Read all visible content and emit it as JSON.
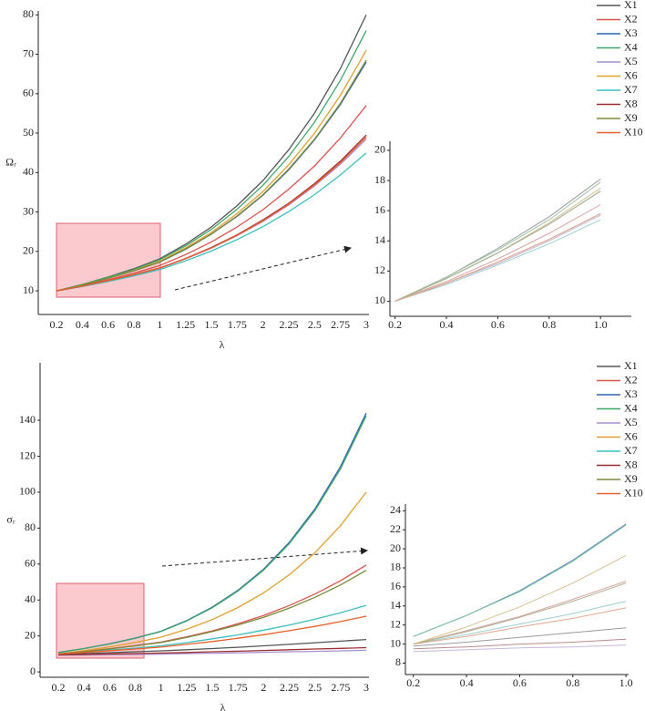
{
  "chart_data": [
    {
      "type": "line",
      "xlabel": "λ",
      "ylabel": "Ωᵣ",
      "categories": [
        "0.2",
        "0.4",
        "0.6",
        "0.8",
        "1",
        "1.25",
        "1.5",
        "1.75",
        "2",
        "2.25",
        "2.5",
        "2.75",
        "3"
      ],
      "ylim": [
        4,
        81
      ],
      "yticks": [
        10,
        20,
        30,
        40,
        50,
        60,
        70,
        80
      ],
      "series": [
        {
          "name": "X1",
          "color": "#555555",
          "values": [
            10,
            11.6,
            13.5,
            15.6,
            18.1,
            21.8,
            26.2,
            31.6,
            38,
            45.8,
            55.1,
            66.4,
            80
          ]
        },
        {
          "name": "X2",
          "color": "#d9534f",
          "values": [
            10,
            11.3,
            12.8,
            14.5,
            16.4,
            19.2,
            22.4,
            26.2,
            30.6,
            35.8,
            41.7,
            48.8,
            57
          ]
        },
        {
          "name": "X3",
          "color": "#2f64b0",
          "values": [
            10,
            11.5,
            13.2,
            15.1,
            17.3,
            20.5,
            24.4,
            28.9,
            34.3,
            40.7,
            48.3,
            57.3,
            68
          ]
        },
        {
          "name": "X4",
          "color": "#3fa66a",
          "values": [
            10,
            11.6,
            13.4,
            15.4,
            17.9,
            21.4,
            25.6,
            30.7,
            36.8,
            44.1,
            52.8,
            63.4,
            76
          ]
        },
        {
          "name": "X5",
          "color": "#a98fd0",
          "values": [
            10,
            11.2,
            12.5,
            14,
            15.7,
            18.1,
            20.8,
            24,
            27.6,
            31.8,
            36.6,
            42.1,
            48.5
          ]
        },
        {
          "name": "X6",
          "color": "#e0a030",
          "values": [
            10,
            11.5,
            13.2,
            15.2,
            17.5,
            20.9,
            24.8,
            29.6,
            35.2,
            42,
            50,
            59.6,
            71
          ]
        },
        {
          "name": "X7",
          "color": "#3dbdbd",
          "values": [
            10,
            11.1,
            12.4,
            13.8,
            15.4,
            17.6,
            20.1,
            23,
            26.3,
            30.1,
            34.4,
            39.4,
            45
          ]
        },
        {
          "name": "X8",
          "color": "#9c2f2f",
          "values": [
            10,
            11.2,
            12.6,
            14.1,
            15.8,
            18.2,
            21,
            24.2,
            28,
            32.2,
            37.2,
            42.9,
            49.5
          ]
        },
        {
          "name": "X9",
          "color": "#7a8a3a",
          "values": [
            10,
            11.5,
            13.2,
            15.1,
            17.3,
            20.6,
            24.4,
            29,
            34.4,
            40.9,
            48.5,
            57.6,
            68.5
          ]
        },
        {
          "name": "X10",
          "color": "#e8602c",
          "values": [
            10,
            11.2,
            12.6,
            14.1,
            15.8,
            18.2,
            20.9,
            24.1,
            27.8,
            32,
            36.9,
            42.5,
            49
          ]
        }
      ]
    },
    {
      "type": "line",
      "x": [
        0.2,
        0.4,
        0.6,
        0.8,
        1.0
      ],
      "xlim": [
        0.18,
        1.12
      ],
      "ylim": [
        9,
        20.6
      ],
      "xticks": [
        0.2,
        0.4,
        0.6,
        0.8,
        {
          "value": 1,
          "label": "1.0"
        }
      ],
      "yticks": [
        10,
        12,
        14,
        16,
        18,
        20
      ],
      "series": [
        {
          "color": "#9a9a9a",
          "values": [
            10,
            11.6,
            13.5,
            15.6,
            18.1
          ]
        },
        {
          "color": "#d9a0a0",
          "values": [
            10,
            11.3,
            12.8,
            14.5,
            16.4
          ]
        },
        {
          "color": "#8fa6c8",
          "values": [
            10,
            11.5,
            13.2,
            15.1,
            17.3
          ]
        },
        {
          "color": "#9cc4a8",
          "values": [
            10,
            11.6,
            13.4,
            15.4,
            17.9
          ]
        },
        {
          "color": "#c6b8dd",
          "values": [
            10,
            11.2,
            12.5,
            14,
            15.7
          ]
        },
        {
          "color": "#d8c08e",
          "values": [
            10,
            11.5,
            13.2,
            15.2,
            17.5
          ]
        },
        {
          "color": "#9ccfcf",
          "values": [
            10,
            11.1,
            12.4,
            13.8,
            15.4
          ]
        },
        {
          "color": "#b88c8c",
          "values": [
            10,
            11.2,
            12.6,
            14.1,
            15.8
          ]
        },
        {
          "color": "#a8b08a",
          "values": [
            10,
            11.5,
            13.2,
            15.1,
            17.3
          ]
        },
        {
          "color": "#e2a88c",
          "values": [
            10,
            11.2,
            12.6,
            14.1,
            15.8
          ]
        }
      ]
    },
    {
      "type": "line",
      "xlabel": "λ",
      "ylabel": "σᵣ",
      "categories": [
        "0.2",
        "0.4",
        "0.6",
        "0.8",
        "1",
        "1.25",
        "1.5",
        "1.75",
        "2",
        "2.25",
        "2.5",
        "2.75",
        "3"
      ],
      "ylim": [
        -3,
        172
      ],
      "yticks": [
        0,
        20,
        40,
        60,
        80,
        100,
        120,
        140
      ],
      "series": [
        {
          "name": "X1",
          "color": "#555555",
          "values": [
            9.8,
            10.2,
            10.7,
            11.2,
            11.7,
            12.3,
            13,
            13.7,
            14.5,
            15.3,
            16.2,
            17.1,
            18
          ]
        },
        {
          "name": "X2",
          "color": "#d9534f",
          "values": [
            10,
            11.4,
            12.9,
            14.7,
            16.6,
            19.5,
            22.8,
            26.8,
            31.4,
            36.9,
            43.3,
            50.7,
            59.5
          ]
        },
        {
          "name": "X3",
          "color": "#2f64b0",
          "values": [
            10.8,
            13,
            15.6,
            18.8,
            22.6,
            28.5,
            36,
            45.4,
            57.1,
            72,
            90.7,
            114.3,
            144
          ]
        },
        {
          "name": "X4",
          "color": "#3fa66a",
          "values": [
            10.8,
            13,
            15.5,
            18.7,
            22.5,
            28.3,
            35.7,
            45,
            56.6,
            71.3,
            89.8,
            113,
            142.5
          ]
        },
        {
          "name": "X5",
          "color": "#a98fd0",
          "values": [
            9.2,
            9.4,
            9.6,
            9.7,
            9.9,
            10.2,
            10.4,
            10.6,
            10.9,
            11.2,
            11.4,
            11.7,
            12
          ]
        },
        {
          "name": "X6",
          "color": "#e0a030",
          "values": [
            10,
            11.8,
            13.9,
            16.4,
            19.3,
            23.7,
            29.1,
            35.8,
            43.9,
            54,
            66.3,
            81.4,
            100
          ]
        },
        {
          "name": "X7",
          "color": "#3dbdbd",
          "values": [
            10,
            11,
            12.1,
            13.2,
            14.5,
            16.3,
            18.4,
            20.6,
            23.2,
            26,
            29.3,
            32.9,
            37
          ]
        },
        {
          "name": "X8",
          "color": "#9c2f2f",
          "values": [
            9.5,
            9.7,
            10,
            10.2,
            10.5,
            10.8,
            11.2,
            11.5,
            11.9,
            12.3,
            12.7,
            13.1,
            13.5
          ]
        },
        {
          "name": "X9",
          "color": "#7a8a3a",
          "values": [
            10,
            11.3,
            12.8,
            14.5,
            16.4,
            19.1,
            22.4,
            26.1,
            30.4,
            35.5,
            41.5,
            48.4,
            56.5
          ]
        },
        {
          "name": "X10",
          "color": "#e8602c",
          "values": [
            10,
            10.8,
            11.8,
            12.7,
            13.8,
            15.3,
            16.9,
            18.7,
            20.7,
            22.9,
            25.3,
            28,
            31
          ]
        }
      ]
    },
    {
      "type": "line",
      "x": [
        0.2,
        0.4,
        0.6,
        0.8,
        1.0
      ],
      "xlim": [
        0.17,
        1.01
      ],
      "ylim": [
        6.8,
        24.7
      ],
      "xticks": [
        0.2,
        0.4,
        0.6,
        0.8,
        {
          "value": 1,
          "label": "1.0"
        }
      ],
      "yticks": [
        8,
        10,
        12,
        14,
        16,
        18,
        20,
        22,
        24
      ],
      "series": [
        {
          "color": "#9a9a9a",
          "values": [
            9.8,
            10.2,
            10.7,
            11.2,
            11.7
          ]
        },
        {
          "color": "#d9a0a0",
          "values": [
            10,
            11.4,
            12.9,
            14.7,
            16.6
          ]
        },
        {
          "color": "#5a86c4",
          "values": [
            10.8,
            13,
            15.6,
            18.8,
            22.6
          ]
        },
        {
          "color": "#7cc49a",
          "values": [
            10.8,
            13,
            15.5,
            18.7,
            22.5
          ]
        },
        {
          "color": "#c6b8dd",
          "values": [
            9.2,
            9.4,
            9.6,
            9.7,
            9.9
          ]
        },
        {
          "color": "#d8c08e",
          "values": [
            10,
            11.8,
            13.9,
            16.4,
            19.3
          ]
        },
        {
          "color": "#9ccfcf",
          "values": [
            10,
            11,
            12.1,
            13.2,
            14.5
          ]
        },
        {
          "color": "#b88c8c",
          "values": [
            9.5,
            9.7,
            10,
            10.2,
            10.5
          ]
        },
        {
          "color": "#a8b08a",
          "values": [
            10,
            11.3,
            12.8,
            14.5,
            16.4
          ]
        },
        {
          "color": "#e2a88c",
          "values": [
            10,
            10.8,
            11.8,
            12.7,
            13.8
          ]
        }
      ]
    }
  ]
}
